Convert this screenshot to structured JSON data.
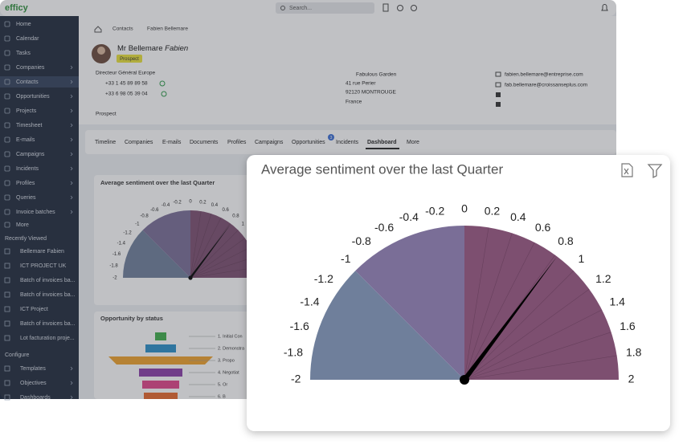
{
  "topbar": {
    "logo": "efficy",
    "search": "Search..."
  },
  "sidebar": {
    "items": [
      "Home",
      "Calendar",
      "Tasks",
      "Companies",
      "Contacts",
      "Opportunities",
      "Projects",
      "Timesheet",
      "E-mails",
      "Campaigns",
      "Incidents",
      "Profiles",
      "Queries",
      "Invoice batches",
      "More"
    ],
    "recently_viewed_title": "Recently Viewed",
    "recent": [
      "Bellemare Fabien",
      "ICT PROJECT UK",
      "Batch of invoices ba...",
      "Batch of invoices ba...",
      "ICT Project",
      "Batch of invoices ba...",
      "Lot facturation proje..."
    ],
    "configure_title": "Configure",
    "configure": [
      "Templates",
      "Objectives",
      "Dashboards"
    ]
  },
  "breadcrumb": [
    "Contacts",
    "Fabien Bellemare"
  ],
  "contact": {
    "salutation": "Mr Bellemare",
    "first_name": "Fabien",
    "badge": "Prospect",
    "job": "Directeur Général Europe",
    "phone": "+33 1 45 89 89 58",
    "mobile": "+33 6 98 05 39 04",
    "status": "Prospect",
    "company": "Fabulous Garden",
    "address": [
      "41 rue Perier",
      "92120 MONTROUGE",
      "France"
    ],
    "emails": [
      "fabien.bellemare@entreprise.com",
      "fab.bellemare@croissanseplus.com"
    ]
  },
  "tabs": [
    "Timeline",
    "Companies",
    "E-mails",
    "Documents",
    "Profiles",
    "Campaigns",
    "Opportunities",
    "Incidents",
    "Dashboard",
    "More"
  ],
  "tab_badge": "3",
  "funnel": {
    "title": "Opportunity by status",
    "labels": [
      "1. Initial Con",
      "2. Demonstra",
      "3. Propo",
      "4. Negotiat",
      "5. Or",
      "6. B"
    ]
  },
  "chart_data": {
    "type": "gauge",
    "title": "Average sentiment over the last Quarter",
    "value": 0.82,
    "ylim": [
      -2,
      2
    ],
    "yticks": [
      -2,
      -1.8,
      -1.6,
      -1.4,
      -1.2,
      -1,
      -0.8,
      -0.6,
      -0.4,
      -0.2,
      0,
      0.2,
      0.4,
      0.6,
      0.8,
      1,
      1.2,
      1.4,
      1.6,
      1.8,
      2
    ],
    "bands": [
      {
        "from": -2,
        "to": -1,
        "color": "#6f7f9b"
      },
      {
        "from": -1,
        "to": 0,
        "color": "#7a6e97"
      },
      {
        "from": 0,
        "to": 2,
        "color": "#7d4f70"
      }
    ],
    "needle_color": "#000000"
  }
}
